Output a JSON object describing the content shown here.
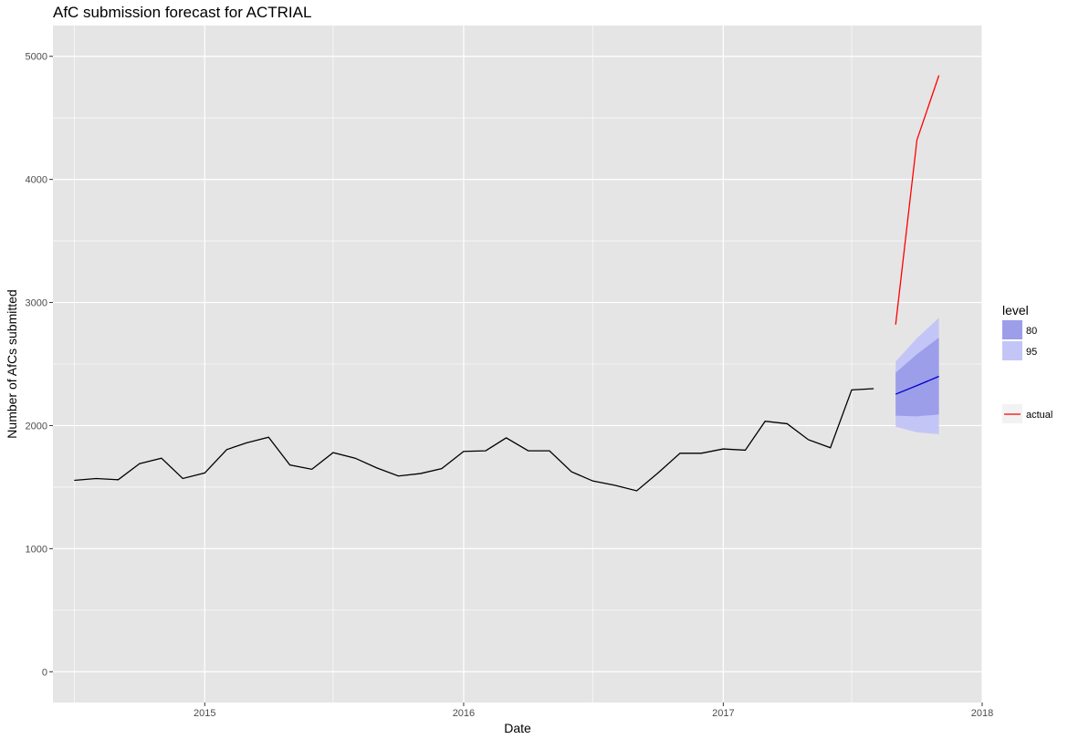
{
  "chart_data": {
    "type": "line",
    "title": "AfC submission forecast for ACTRIAL",
    "xlabel": "Date",
    "ylabel": "Number of AfCs submitted",
    "xlim": [
      "2014-06-01",
      "2018-01-01"
    ],
    "ylim": [
      -250,
      5250
    ],
    "x_ticks": [
      {
        "date": "2015-01-01",
        "label": "2015"
      },
      {
        "date": "2016-01-01",
        "label": "2016"
      },
      {
        "date": "2017-01-01",
        "label": "2017"
      },
      {
        "date": "2018-01-01",
        "label": "2018"
      }
    ],
    "x_minor_ticks": [
      "2014-07-01",
      "2015-07-01",
      "2016-07-01",
      "2017-07-01"
    ],
    "y_ticks": [
      0,
      1000,
      2000,
      3000,
      4000,
      5000
    ],
    "grid": true,
    "legend_position": "right",
    "colors": {
      "panel": "#e5e5e5",
      "grid": "#ffffff",
      "history": "#000000",
      "forecast": "#0000cc",
      "actual": "#ff0000",
      "band80": "#9d9eea",
      "band95": "#c4c5f7"
    },
    "legend": {
      "level_title": "level",
      "levels": [
        "80",
        "95"
      ],
      "actual_label": "actual"
    },
    "history": {
      "x": [
        "2014-07-01",
        "2014-08-01",
        "2014-09-01",
        "2014-10-01",
        "2014-11-01",
        "2014-12-01",
        "2015-01-01",
        "2015-02-01",
        "2015-03-01",
        "2015-04-01",
        "2015-05-01",
        "2015-06-01",
        "2015-07-01",
        "2015-08-01",
        "2015-09-01",
        "2015-10-01",
        "2015-11-01",
        "2015-12-01",
        "2016-01-01",
        "2016-02-01",
        "2016-03-01",
        "2016-04-01",
        "2016-05-01",
        "2016-06-01",
        "2016-07-01",
        "2016-08-01",
        "2016-09-01",
        "2016-10-01",
        "2016-11-01",
        "2016-12-01",
        "2017-01-01",
        "2017-02-01",
        "2017-03-01",
        "2017-04-01",
        "2017-05-01",
        "2017-06-01",
        "2017-07-01",
        "2017-08-01"
      ],
      "values": [
        1555,
        1570,
        1560,
        1690,
        1735,
        1570,
        1615,
        1805,
        1860,
        1905,
        1680,
        1645,
        1780,
        1735,
        1655,
        1590,
        1610,
        1650,
        1790,
        1795,
        1900,
        1795,
        1795,
        1625,
        1550,
        1515,
        1470,
        1615,
        1775,
        1775,
        1810,
        1800,
        2035,
        2015,
        1885,
        1820,
        2290,
        2300
      ]
    },
    "forecast": {
      "x": [
        "2017-09-01",
        "2017-10-01",
        "2017-11-01"
      ],
      "mean": [
        2255,
        2325,
        2400
      ],
      "lo80": [
        2080,
        2075,
        2090
      ],
      "hi80": [
        2430,
        2580,
        2715
      ],
      "lo95": [
        1990,
        1945,
        1930
      ],
      "hi95": [
        2520,
        2710,
        2875
      ]
    },
    "actual": {
      "x": [
        "2017-09-01",
        "2017-10-01",
        "2017-11-01"
      ],
      "values": [
        2820,
        4320,
        4845
      ]
    }
  }
}
